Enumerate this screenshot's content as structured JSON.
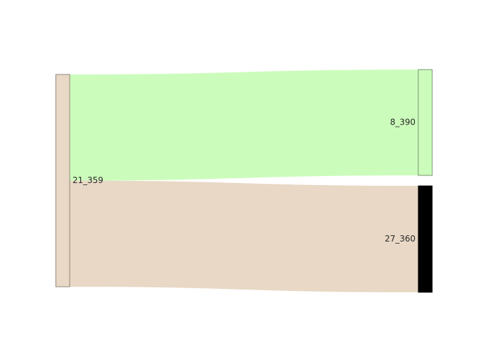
{
  "chart_data": {
    "type": "sankey",
    "title": "",
    "nodes": [
      {
        "id": "a",
        "label": "21_359",
        "column": 0,
        "value": 2,
        "fill": "#e8d8c5",
        "stroke": "#7a6e62"
      },
      {
        "id": "b",
        "label": "8_390",
        "column": 1,
        "value": 1,
        "fill": "#ccfcbc",
        "stroke": "#5c7a55"
      },
      {
        "id": "c",
        "label": "27_360",
        "column": 1,
        "value": 1,
        "fill": "#000000",
        "stroke": "#000000"
      }
    ],
    "links": [
      {
        "source": "a",
        "target": "b",
        "value": 1,
        "color": "#ccfcbc"
      },
      {
        "source": "a",
        "target": "c",
        "value": 1,
        "color": "#e8d8c5"
      }
    ]
  }
}
